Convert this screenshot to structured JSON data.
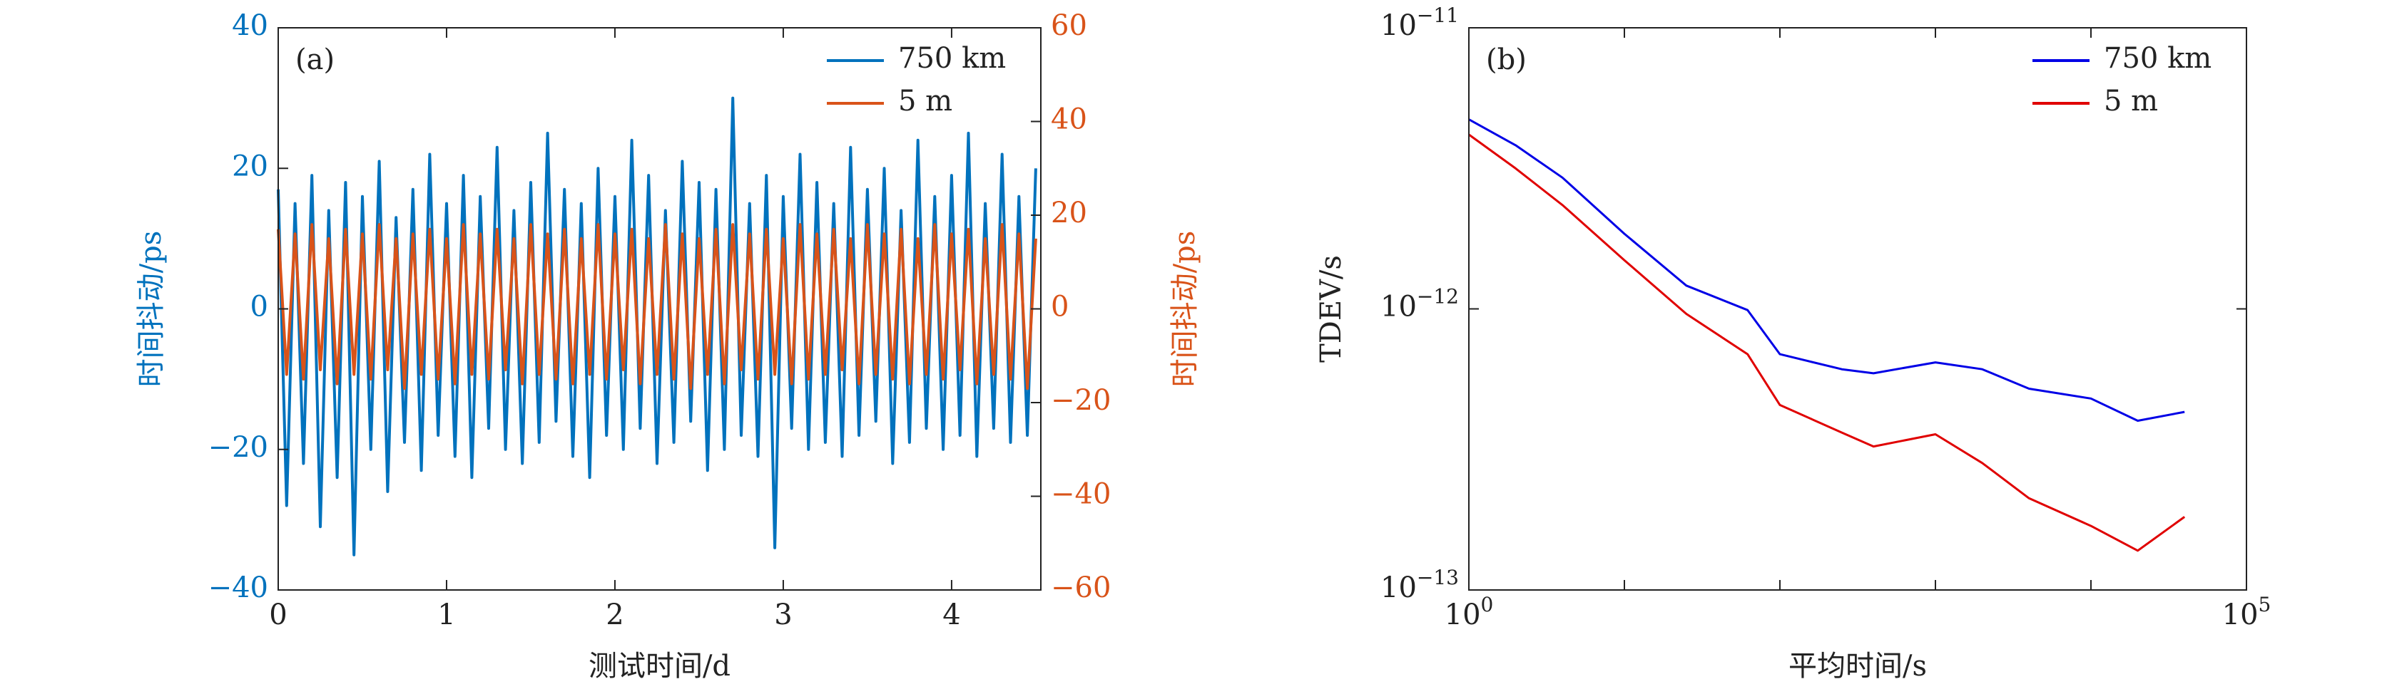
{
  "chart_data": [
    {
      "type": "line",
      "annotation": "(a)",
      "xlabel": "测试时间/d",
      "ylabel": "时间抖动/ps",
      "y2label": "时间抖动/ps",
      "xlim": [
        0,
        4.53
      ],
      "xticks": [
        0,
        1,
        2,
        3,
        4
      ],
      "ylim": [
        -40,
        40
      ],
      "yticks": [
        {
          "value": -40,
          "label": "−40"
        },
        {
          "value": -20,
          "label": "−20"
        },
        0,
        20,
        40
      ],
      "y2lim": [
        -60,
        60
      ],
      "y2ticks": [
        {
          "value": -60,
          "label": "−60"
        },
        {
          "value": -40,
          "label": "−40"
        },
        {
          "value": -20,
          "label": "−20"
        },
        0,
        20,
        40,
        60
      ],
      "ycolor": "#0072bd",
      "y2color": "#d95319",
      "legend": "upper right",
      "x": [
        0,
        0.05,
        0.1,
        0.15,
        0.2,
        0.25,
        0.3,
        0.35,
        0.4,
        0.45,
        0.5,
        0.55,
        0.6,
        0.65,
        0.7,
        0.75,
        0.8,
        0.85,
        0.9,
        0.95,
        1,
        1.05,
        1.1,
        1.15,
        1.2,
        1.25,
        1.3,
        1.35,
        1.4,
        1.45,
        1.5,
        1.55,
        1.6,
        1.65,
        1.7,
        1.75,
        1.8,
        1.85,
        1.9,
        1.95,
        2,
        2.05,
        2.1,
        2.15,
        2.2,
        2.25,
        2.3,
        2.35,
        2.4,
        2.45,
        2.5,
        2.55,
        2.6,
        2.65,
        2.7,
        2.75,
        2.8,
        2.85,
        2.9,
        2.95,
        3,
        3.05,
        3.1,
        3.15,
        3.2,
        3.25,
        3.3,
        3.35,
        3.4,
        3.45,
        3.5,
        3.55,
        3.6,
        3.65,
        3.7,
        3.75,
        3.8,
        3.85,
        3.9,
        3.95,
        4,
        4.05,
        4.1,
        4.15,
        4.2,
        4.25,
        4.3,
        4.35,
        4.4,
        4.45,
        4.5
      ],
      "series": [
        {
          "name": "750 km",
          "color": "#0072bd",
          "axis": "y",
          "values": [
            17,
            -28,
            15,
            -22,
            19,
            -31,
            14,
            -24,
            18,
            -35,
            16,
            -20,
            21,
            -26,
            13,
            -19,
            17,
            -23,
            22,
            -18,
            15,
            -21,
            19,
            -24,
            16,
            -17,
            23,
            -20,
            14,
            -22,
            18,
            -19,
            25,
            -16,
            17,
            -21,
            15,
            -24,
            20,
            -18,
            16,
            -20,
            24,
            -17,
            19,
            -22,
            14,
            -19,
            21,
            -16,
            18,
            -23,
            17,
            -20,
            30,
            -18,
            15,
            -21,
            19,
            -34,
            16,
            -17,
            22,
            -20,
            18,
            -19,
            15,
            -21,
            23,
            -18,
            17,
            -16,
            20,
            -22,
            14,
            -19,
            24,
            -17,
            16,
            -20,
            19,
            -18,
            25,
            -21,
            15,
            -17,
            22,
            -19,
            16,
            -18,
            20
          ]
        },
        {
          "name": "5 m",
          "color": "#d95319",
          "axis": "y2",
          "values": [
            17,
            -14,
            16,
            -15,
            18,
            -13,
            15,
            -16,
            17,
            -14,
            16,
            -15,
            18,
            -13,
            15,
            -17,
            16,
            -14,
            17,
            -15,
            15,
            -16,
            18,
            -14,
            16,
            -15,
            17,
            -13,
            15,
            -16,
            18,
            -14,
            16,
            -15,
            17,
            -16,
            15,
            -14,
            18,
            -15,
            16,
            -13,
            17,
            -16,
            15,
            -14,
            18,
            -15,
            16,
            -17,
            15,
            -14,
            17,
            -16,
            18,
            -13,
            16,
            -15,
            17,
            -14,
            15,
            -16,
            18,
            -15,
            16,
            -14,
            17,
            -13,
            15,
            -16,
            18,
            -14,
            16,
            -15,
            17,
            -16,
            15,
            -14,
            18,
            -15,
            16,
            -13,
            17,
            -16,
            15,
            -14,
            18,
            -15,
            16,
            -17,
            15
          ]
        }
      ]
    },
    {
      "type": "line",
      "annotation": "(b)",
      "xlabel": "平均时间/s",
      "ylabel": "TDEV/s",
      "xscale": "log",
      "yscale": "log",
      "xlim": [
        1,
        100000
      ],
      "xticks": [
        {
          "value": 1,
          "label": "100"
        },
        {
          "value": 100000,
          "label": "105"
        }
      ],
      "xminor": [
        10,
        100,
        1000,
        10000
      ],
      "ylim": [
        1e-13,
        1e-11
      ],
      "yticks": [
        {
          "value": 1e-13,
          "label": "10−13"
        },
        {
          "value": 1e-12,
          "label": "10−12"
        },
        {
          "value": 1e-11,
          "label": "10−11"
        }
      ],
      "legend": "upper right",
      "x": [
        1,
        2,
        4,
        10,
        25,
        62,
        100,
        250,
        400,
        1000,
        2000,
        4000,
        10000,
        20000,
        40000
      ],
      "series": [
        {
          "name": "750 km",
          "color": "#0000e6",
          "values": [
            4.72e-12,
            3.82e-12,
            2.93e-12,
            1.85e-12,
            1.21e-12,
            9.9e-13,
            6.9e-13,
            6.1e-13,
            5.9e-13,
            6.45e-13,
            6.1e-13,
            5.2e-13,
            4.8e-13,
            4e-13,
            4.3e-13
          ]
        },
        {
          "name": "5 m",
          "color": "#e00000",
          "values": [
            4.17e-12,
            3.16e-12,
            2.34e-12,
            1.49e-12,
            9.6e-13,
            6.9e-13,
            4.55e-13,
            3.63e-13,
            3.24e-13,
            3.58e-13,
            2.83e-13,
            2.12e-13,
            1.69e-13,
            1.38e-13,
            1.82e-13
          ]
        }
      ]
    }
  ]
}
